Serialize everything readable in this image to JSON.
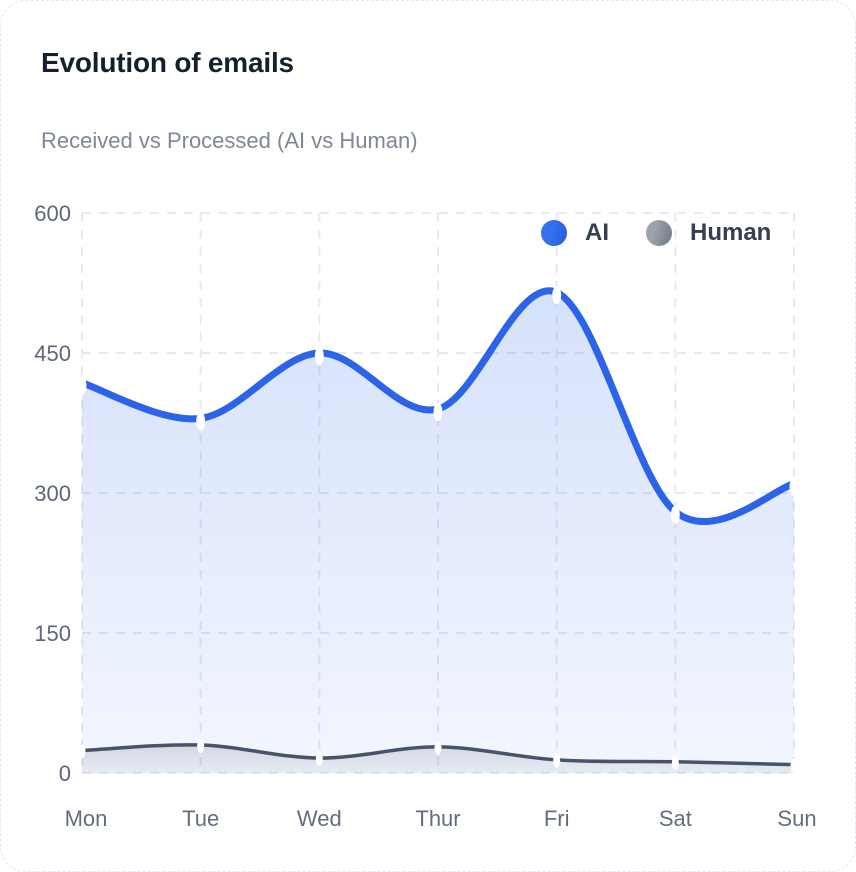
{
  "chart_data": {
    "type": "area",
    "title": "Evolution of emails",
    "subtitle": "Received vs Processed (AI vs Human)",
    "categories": [
      "Mon",
      "Tue",
      "Wed",
      "Thur",
      "Fri",
      "Sat",
      "Sun"
    ],
    "series": [
      {
        "name": "AI",
        "values": [
          418,
          380,
          450,
          390,
          515,
          280,
          310
        ],
        "line_color": "#2b64e9",
        "line_width": 7,
        "fill_top": "rgba(47,104,233,0.20)",
        "fill_bottom": "rgba(47,104,233,0.06)"
      },
      {
        "name": "Human",
        "values": [
          24,
          30,
          16,
          28,
          14,
          12,
          9
        ],
        "line_color": "#46536a",
        "line_width": 3.5,
        "fill_top": "rgba(88,100,120,0.20)",
        "fill_bottom": "rgba(88,100,120,0.08)"
      }
    ],
    "yticks": [
      0,
      150,
      300,
      450,
      600
    ],
    "ylim": [
      0,
      600
    ],
    "xlabel": "",
    "ylabel": "",
    "grid": "dashed-both-axes",
    "legend_position": "top-right",
    "marker_style": "white-pill"
  },
  "legend_dots": {
    "ai_light": "#3570f2",
    "ai_dark": "#2559dd",
    "human_light": "#9aa2ad",
    "human_dark": "#6d7584"
  },
  "axis": {
    "label_color": "#5c6778",
    "grid_color": "#e4eaf4"
  }
}
